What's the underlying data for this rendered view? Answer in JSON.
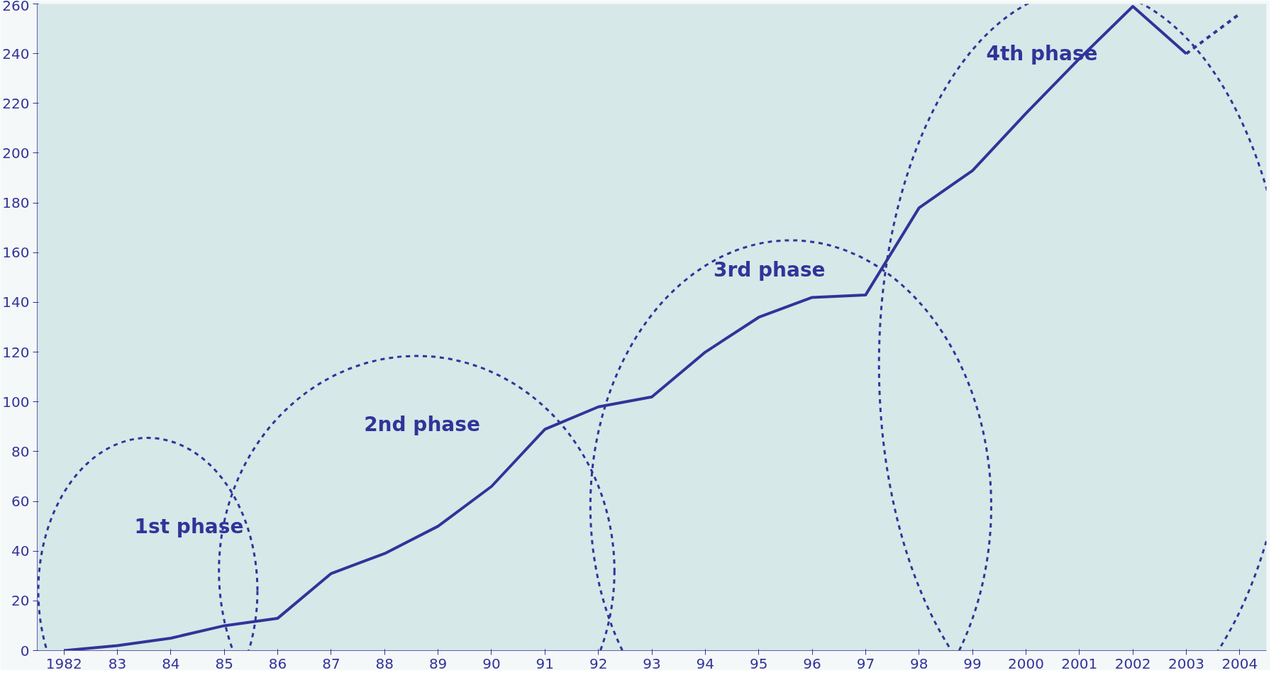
{
  "chart_data": {
    "type": "line",
    "categories": [
      "1982",
      "83",
      "84",
      "85",
      "86",
      "87",
      "88",
      "89",
      "90",
      "91",
      "92",
      "93",
      "94",
      "95",
      "96",
      "97",
      "98",
      "99",
      "2000",
      "2001",
      "2002",
      "2003",
      "2004"
    ],
    "series": [
      {
        "color": "#333399",
        "line_style": "solid",
        "values": [
          0,
          2,
          5,
          10,
          13,
          31,
          39,
          50,
          66,
          89,
          98,
          102,
          120,
          134,
          142,
          143,
          178,
          193,
          216,
          238,
          259,
          240,
          null
        ]
      },
      {
        "color": "#333399",
        "line_style": "dashed",
        "values": [
          null,
          null,
          null,
          null,
          null,
          null,
          null,
          null,
          null,
          null,
          null,
          null,
          null,
          null,
          null,
          null,
          null,
          null,
          null,
          null,
          null,
          240,
          256
        ]
      }
    ],
    "ylim": [
      0,
      260
    ],
    "yticks": [
      0,
      20,
      40,
      60,
      80,
      100,
      120,
      140,
      160,
      180,
      200,
      220,
      240,
      260
    ],
    "annotations": [
      "1st phase",
      "2nd phase",
      "3rd phase",
      "4th phase"
    ]
  }
}
